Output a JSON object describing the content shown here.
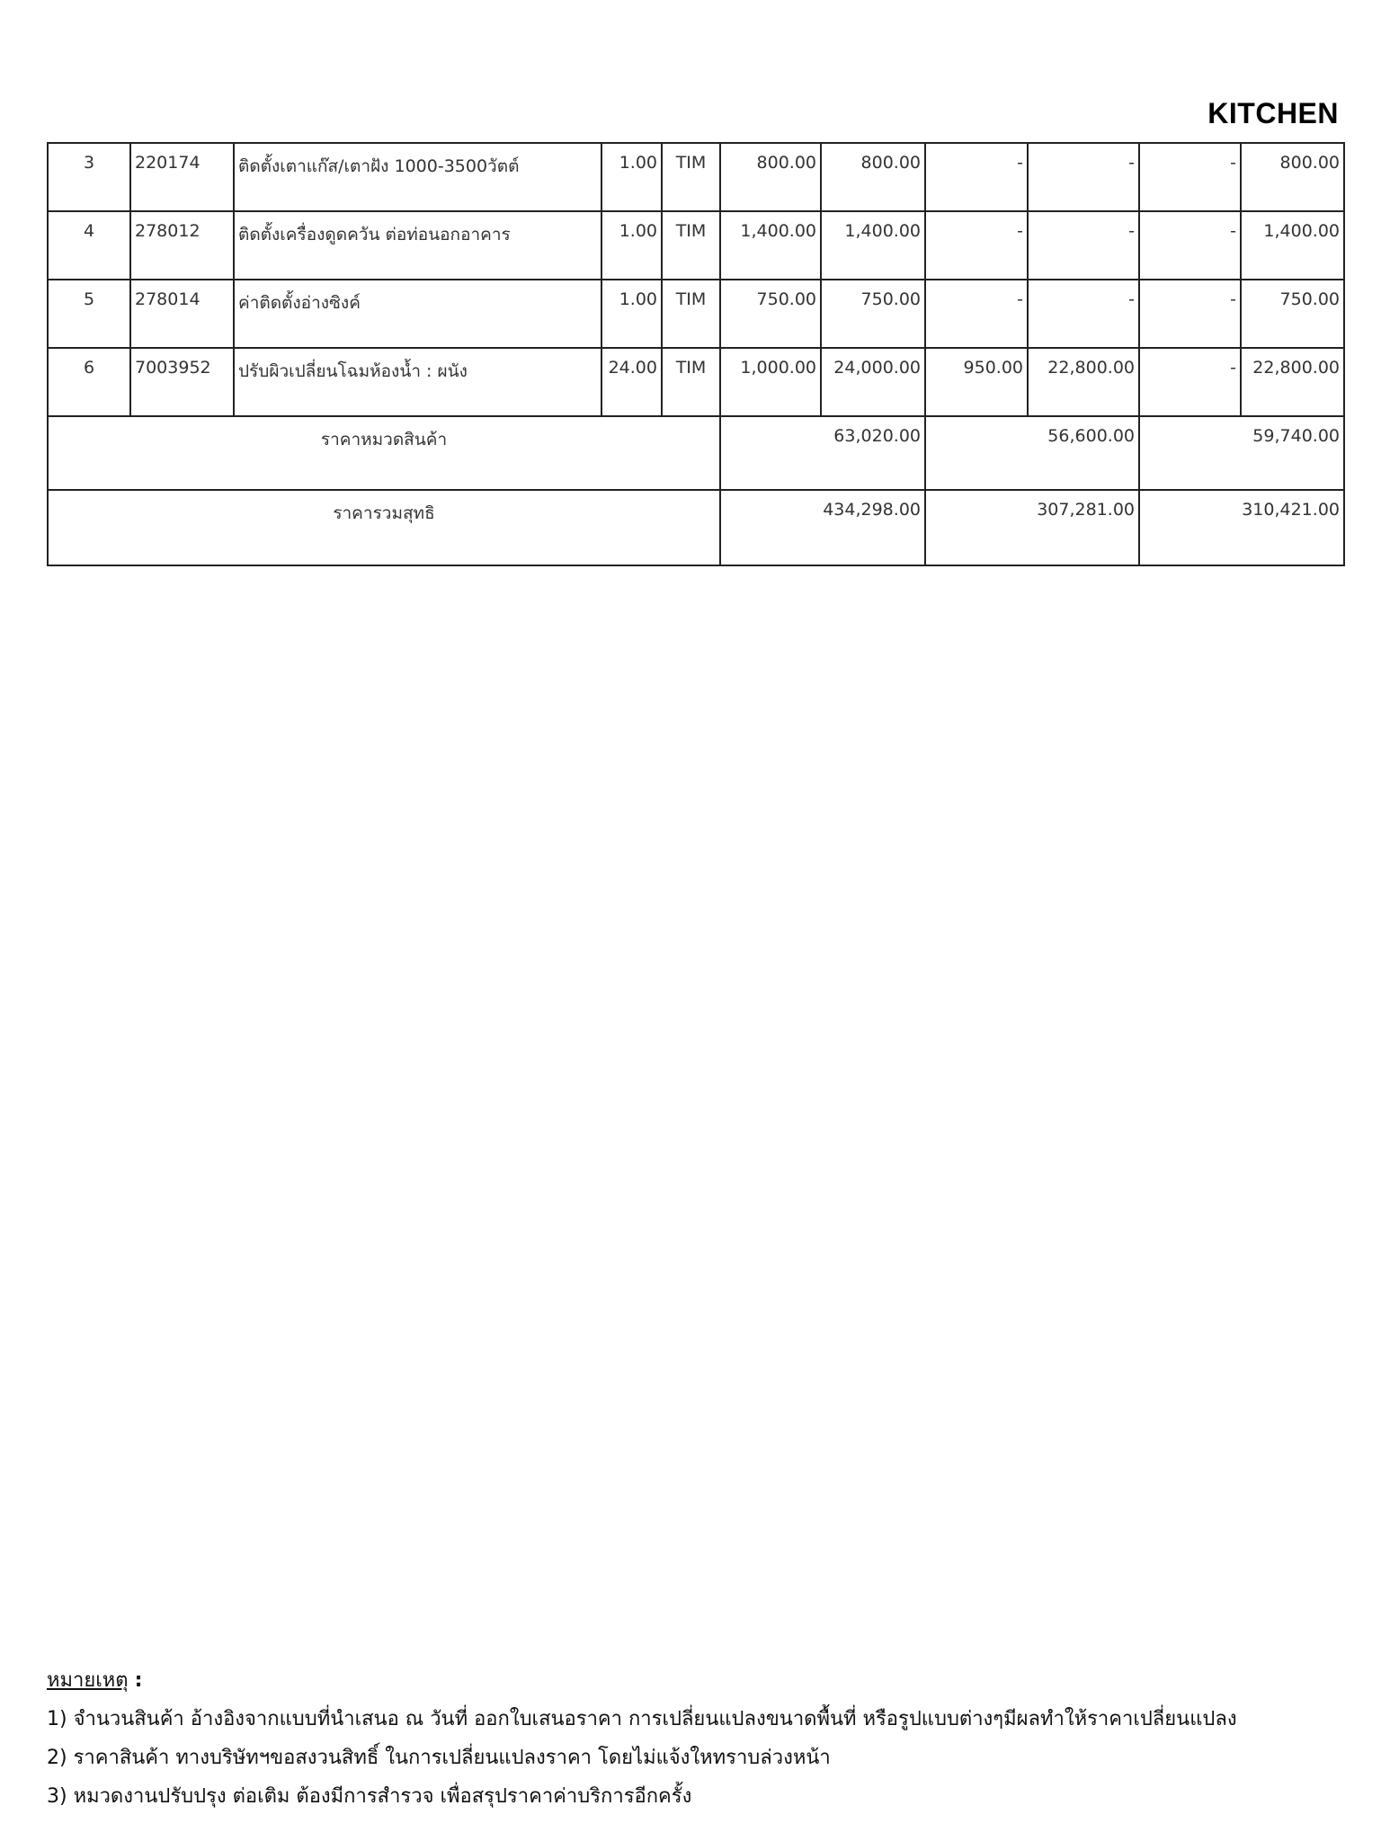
{
  "section_title": "KITCHEN",
  "rows": [
    {
      "no": "3",
      "code": "220174",
      "desc": "ติดตั้งเตาแก๊ส/เตาฝัง 1000-3500วัตต์",
      "qty": "1.00",
      "unit": "TIM",
      "price": "800.00",
      "amount": "800.00",
      "disc_price": "-",
      "disc_amount": "-",
      "extra": "-",
      "total": "800.00"
    },
    {
      "no": "4",
      "code": "278012",
      "desc": "ติดตั้งเครื่องดูดควัน ต่อท่อนอกอาคาร",
      "qty": "1.00",
      "unit": "TIM",
      "price": "1,400.00",
      "amount": "1,400.00",
      "disc_price": "-",
      "disc_amount": "-",
      "extra": "-",
      "total": "1,400.00"
    },
    {
      "no": "5",
      "code": "278014",
      "desc": "ค่าติดตั้งอ่างซิงค์",
      "qty": "1.00",
      "unit": "TIM",
      "price": "750.00",
      "amount": "750.00",
      "disc_price": "-",
      "disc_amount": "-",
      "extra": "-",
      "total": "750.00"
    },
    {
      "no": "6",
      "code": "7003952",
      "desc": "ปรับผิวเปลี่ยนโฉมห้องน้ำ : ผนัง",
      "qty": "24.00",
      "unit": "TIM",
      "price": "1,000.00",
      "amount": "24,000.00",
      "disc_price": "950.00",
      "disc_amount": "22,800.00",
      "extra": "-",
      "total": "22,800.00"
    }
  ],
  "subtotal": {
    "label": "ราคาหมวดสินค้า",
    "v1": "63,020.00",
    "v2": "56,600.00",
    "v3": "59,740.00"
  },
  "grand_total": {
    "label": "ราคารวมสุทธิ",
    "v1": "434,298.00",
    "v2": "307,281.00",
    "v3": "310,421.00"
  },
  "notes": {
    "heading": "หมายเหตุ",
    "colon": ":",
    "items": [
      "1) จำนวนสินค้า อ้างอิงจากแบบที่นำเสนอ ณ วันที่ ออกใบเสนอราคา การเปลี่ยนแปลงขนาดพื้นที่ หรือรูปแบบต่างๆมีผลทำให้ราคาเปลี่ยนแปลง",
      "2) ราคาสินค้า ทางบริษัทฯขอสงวนสิทธิ์ ในการเปลี่ยนแปลงราคา โดยไม่แจ้งใหทราบล่วงหน้า",
      "3) หมวดงานปรับปรุง ต่อเติม ต้องมีการสำรวจ เพื่อสรุปราคาค่าบริการอีกครั้ง"
    ]
  }
}
